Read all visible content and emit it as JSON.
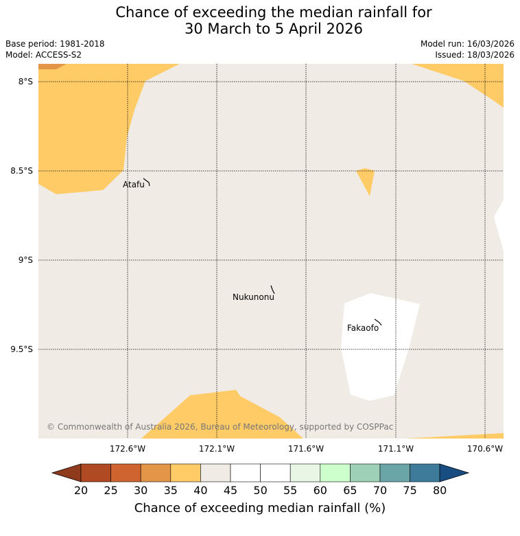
{
  "header": {
    "title_line1": "Chance of exceeding the median rainfall for",
    "title_line2": "30 March to 5 April 2026",
    "base_period": "Base period: 1981-2018",
    "model": "Model: ACCESS-S2",
    "model_run": "Model run: 16/03/2026",
    "issued": "Issued: 18/03/2026"
  },
  "map": {
    "lat_labels": [
      "8°S",
      "8.5°S",
      "9°S",
      "9.5°S"
    ],
    "lon_labels": [
      "172.6°W",
      "172.1°W",
      "171.6°W",
      "171.1°W",
      "170.6°W"
    ],
    "places": [
      "Atafu",
      "Nukunonu",
      "Fakaofo"
    ],
    "copyright": "© Commonwealth of Australia 2026, Bureau of Meteorology, supported by COSPPac",
    "colors": {
      "background_40_45": "#f0ebe5",
      "range_35_40": "#fecb66",
      "range_30_35": "#e39548",
      "range_45_55": "#ffffff"
    }
  },
  "colorbar": {
    "ticks": [
      "20",
      "25",
      "30",
      "35",
      "40",
      "45",
      "50",
      "55",
      "60",
      "65",
      "70",
      "75",
      "80"
    ],
    "label": "Chance of exceeding median rainfall (%)",
    "under_color": "#8f3a1c",
    "over_color": "#174d81",
    "colors": [
      "#b04a23",
      "#cf6430",
      "#e39548",
      "#fecb66",
      "#f0ebe5",
      "#ffffff",
      "#ffffff",
      "#e9f5e5",
      "#ccffcc",
      "#9ed0b7",
      "#6aa6a8",
      "#3e7a9a"
    ]
  }
}
